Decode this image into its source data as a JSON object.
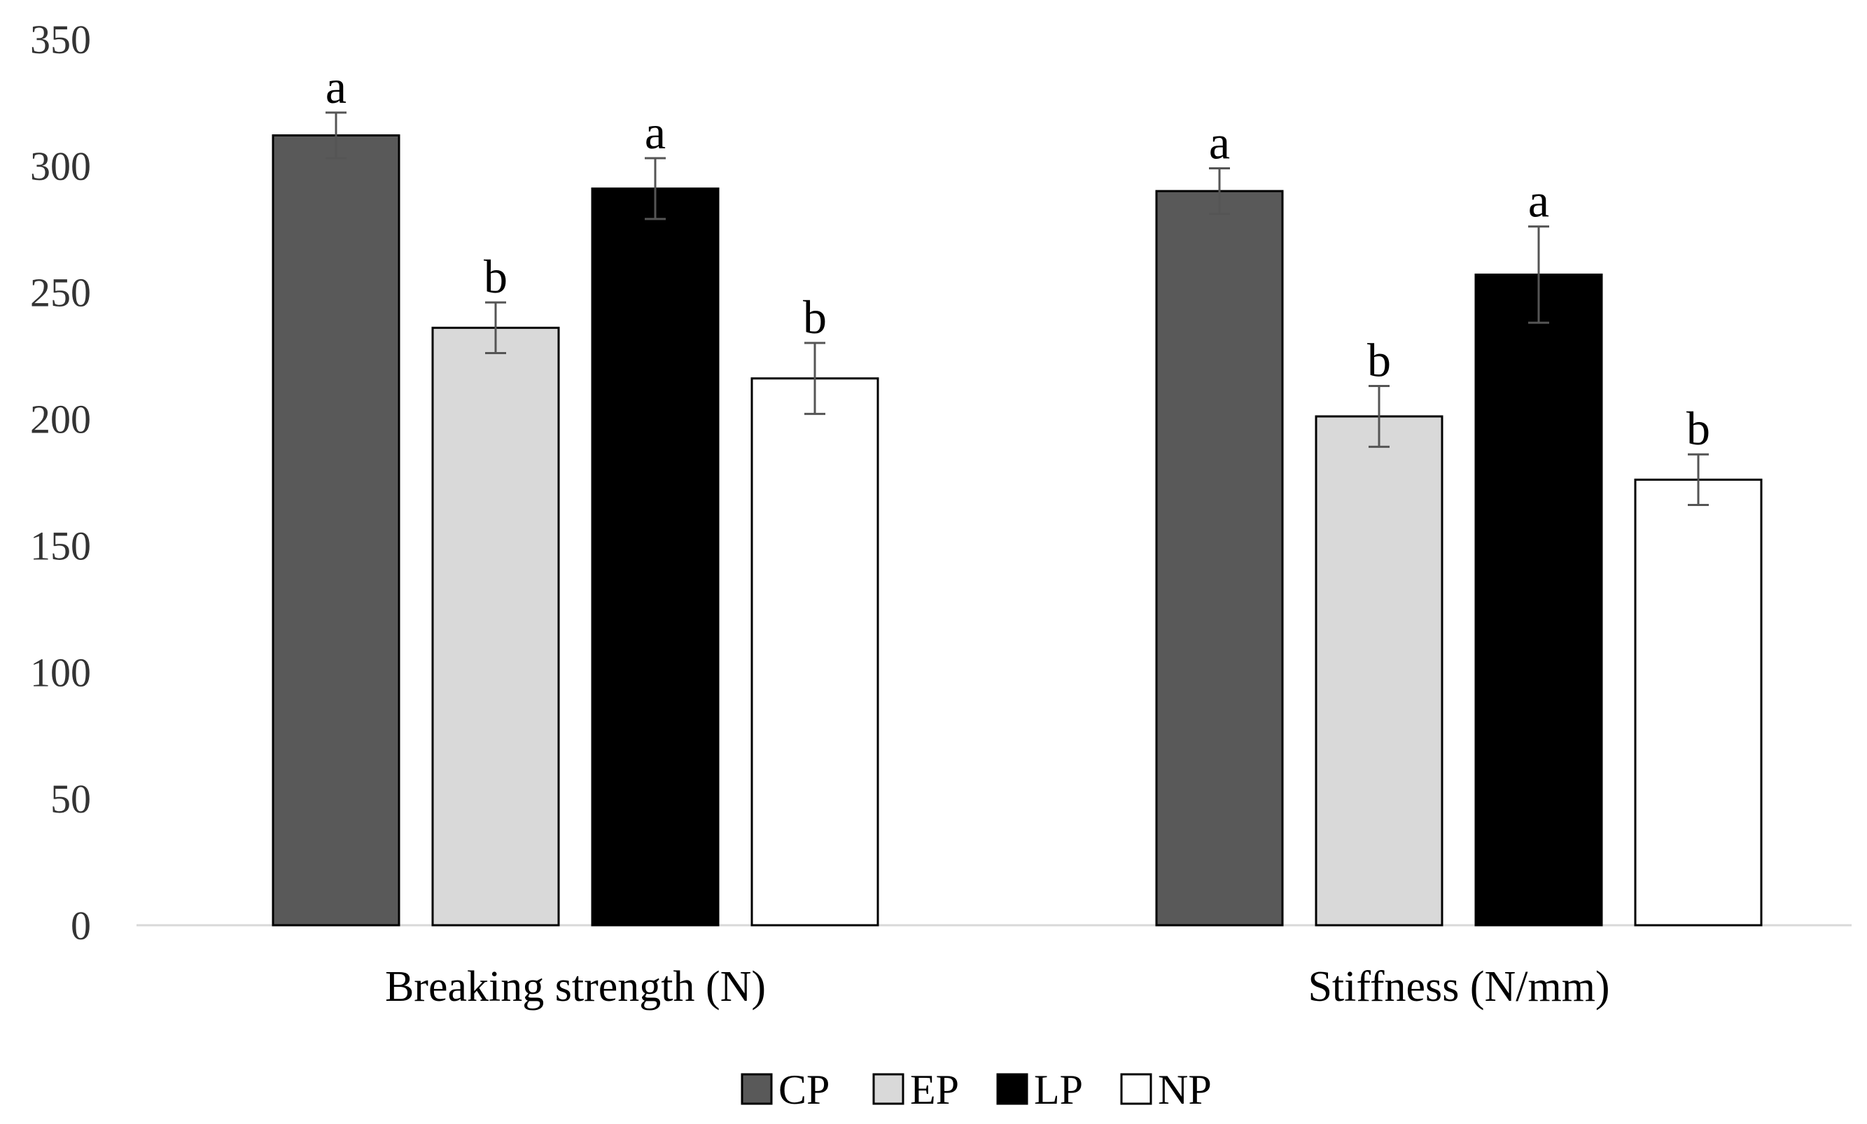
{
  "chart_data": {
    "type": "bar",
    "title": "",
    "xlabel": "",
    "ylabel": "",
    "ylim": [
      0,
      350
    ],
    "yticks": [
      0,
      50,
      100,
      150,
      200,
      250,
      300,
      350
    ],
    "grid": false,
    "legend_position": "bottom-center",
    "categories": [
      "Breaking strength (N)",
      "Stiffness (N/mm)"
    ],
    "series": [
      {
        "name": "CP",
        "color": "#595959",
        "values": [
          312,
          290
        ],
        "errors": [
          9,
          9
        ],
        "significance": [
          "a",
          "a"
        ]
      },
      {
        "name": "EP",
        "color": "#d9d9d9",
        "values": [
          236,
          201
        ],
        "errors": [
          10,
          12
        ],
        "significance": [
          "b",
          "b"
        ]
      },
      {
        "name": "LP",
        "color": "#000000",
        "values": [
          291,
          257
        ],
        "errors": [
          12,
          19
        ],
        "significance": [
          "a",
          "a"
        ]
      },
      {
        "name": "NP",
        "color": "#ffffff",
        "values": [
          216,
          176
        ],
        "errors": [
          14,
          10
        ],
        "significance": [
          "b",
          "b"
        ]
      }
    ]
  }
}
